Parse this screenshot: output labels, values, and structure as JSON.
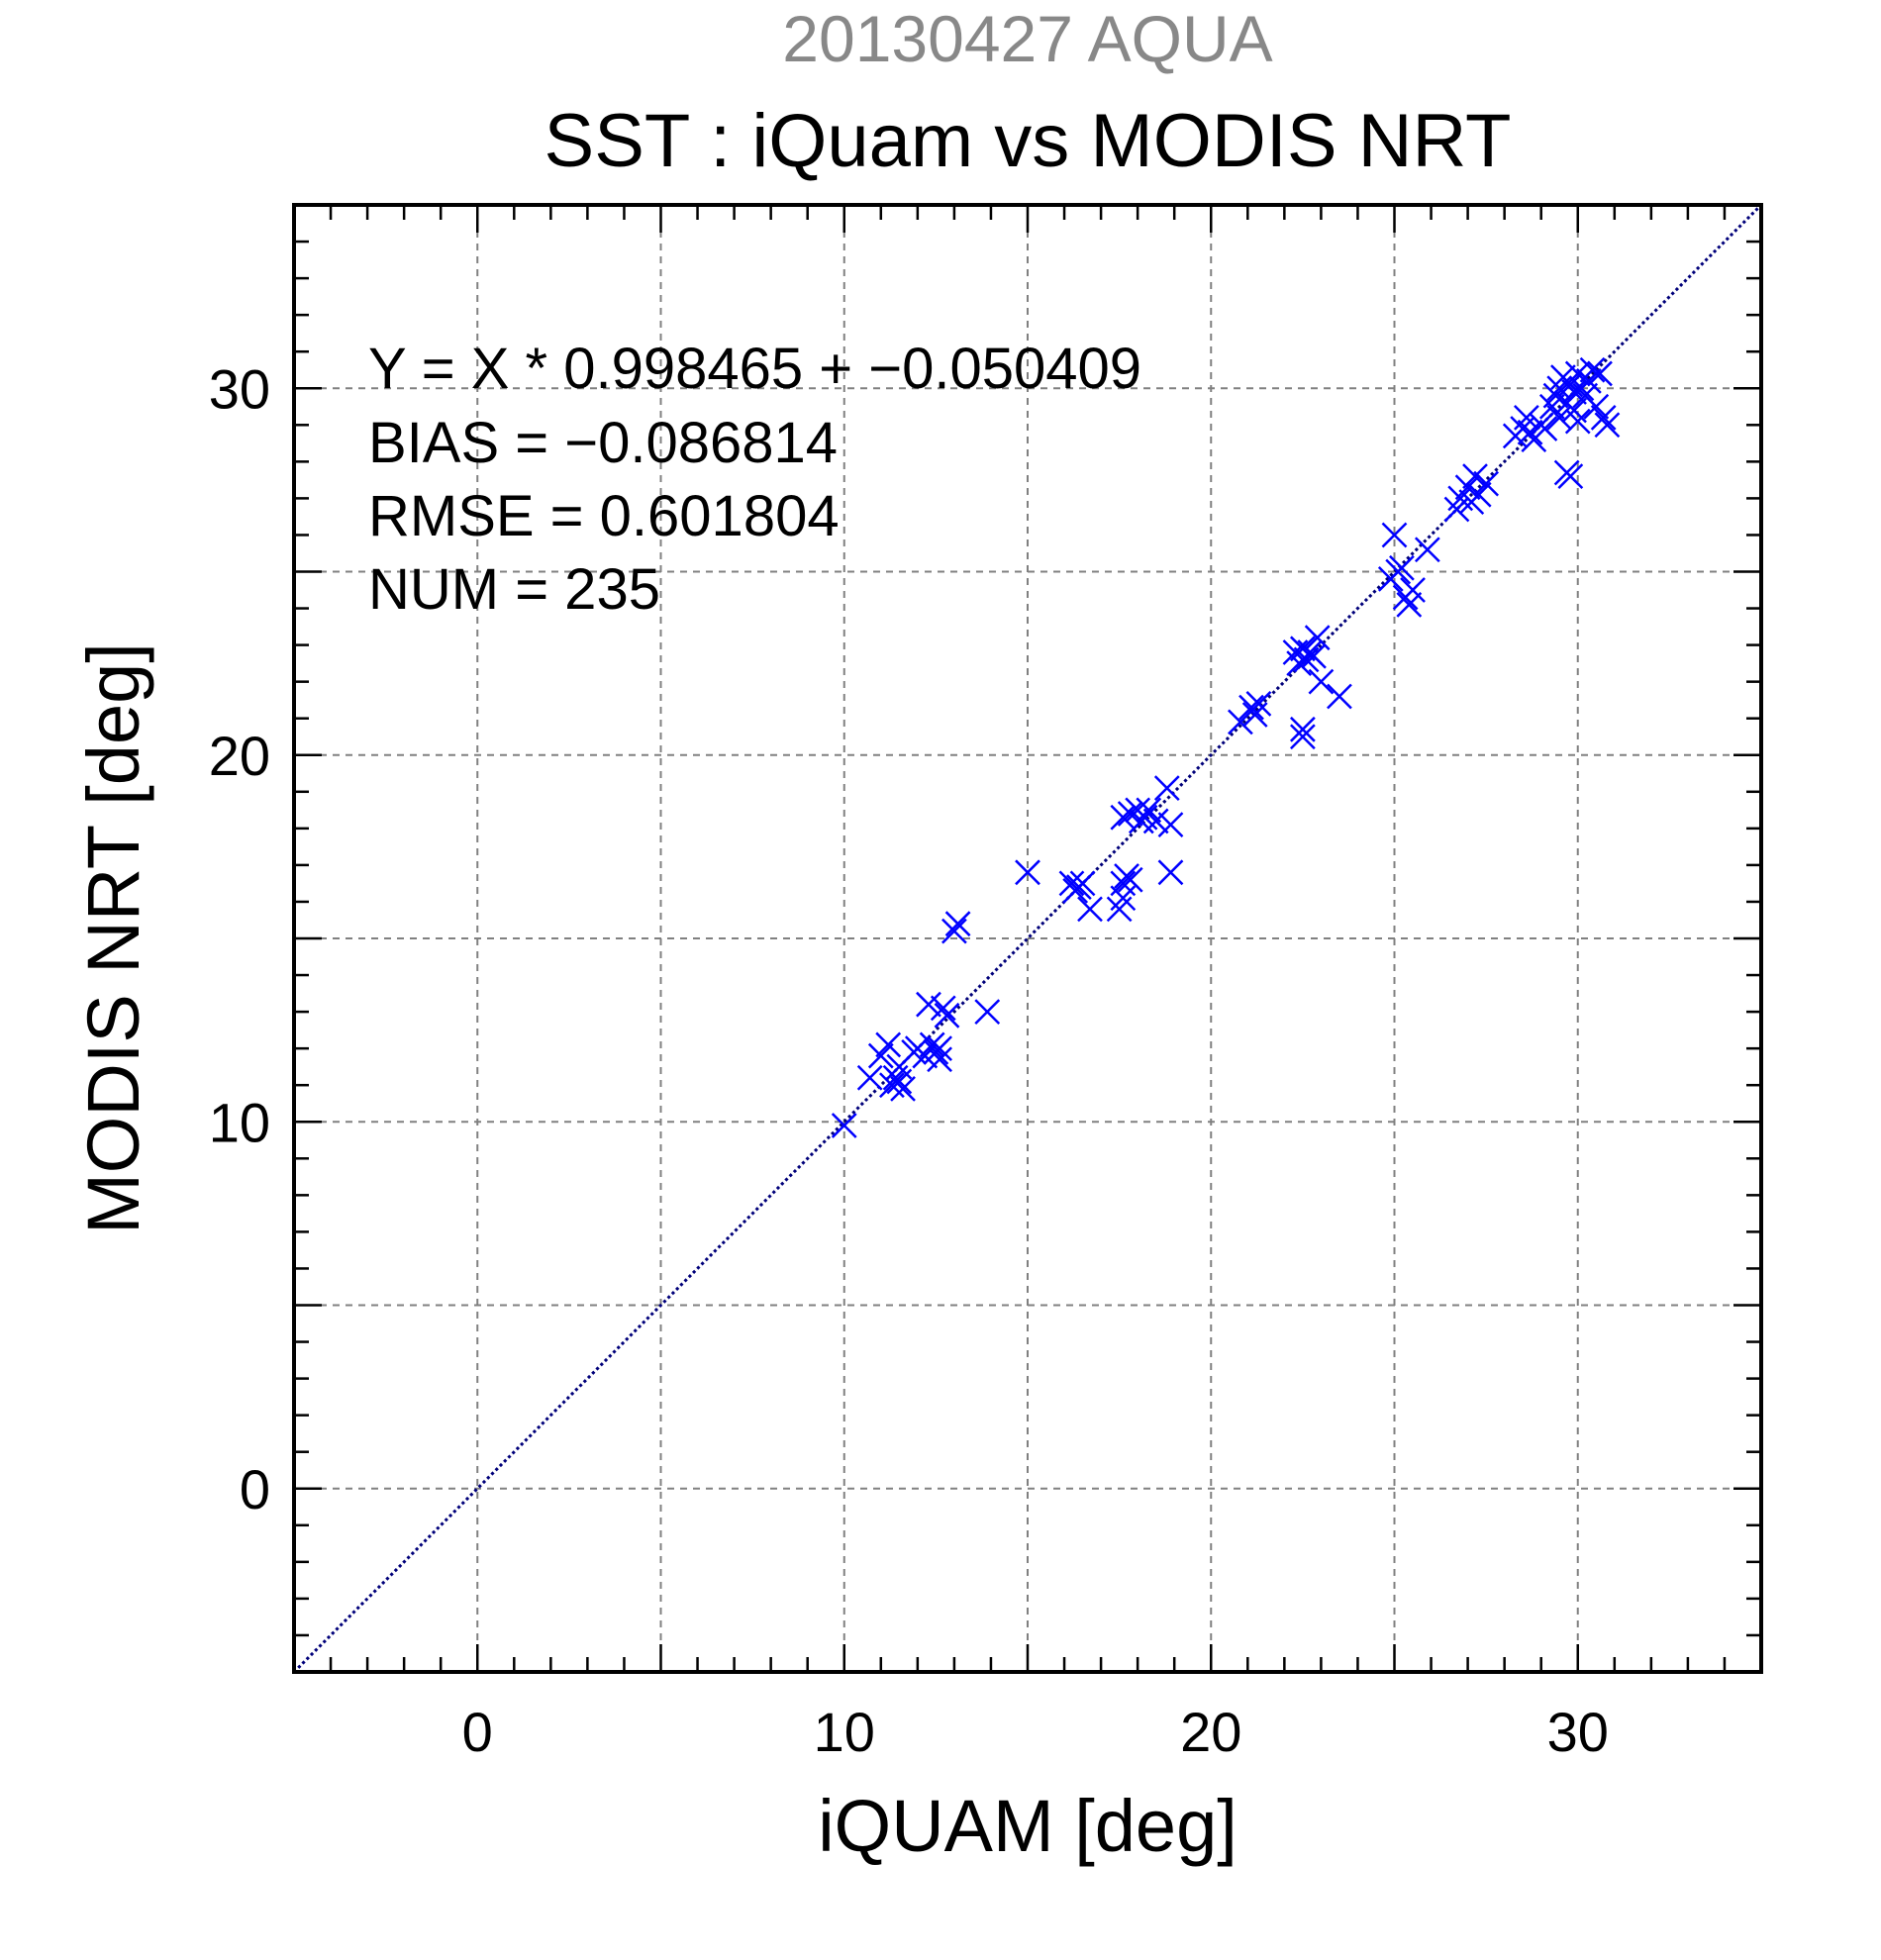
{
  "chart_data": {
    "type": "scatter",
    "title_top": "20130427 AQUA",
    "title": "SST : iQuam vs MODIS NRT",
    "xlabel": "iQUAM [deg]",
    "ylabel": "MODIS NRT [deg]",
    "xlim": [
      -5,
      35
    ],
    "ylim": [
      -5,
      35
    ],
    "xticks": [
      0,
      10,
      20,
      30
    ],
    "yticks": [
      0,
      10,
      20,
      30
    ],
    "xtick_labels": [
      "0",
      "10",
      "20",
      "30"
    ],
    "ytick_labels": [
      "0",
      "10",
      "20",
      "30"
    ],
    "grid": true,
    "grid_step": 5,
    "minor_tick_step": 1,
    "marker": "x",
    "marker_color": "#0000ff",
    "reference_line": {
      "slope": 1,
      "intercept": 0,
      "style": "dotted",
      "color": "#00007a"
    },
    "stats": [
      "Y = X * 0.998465 + −0.050409",
      "BIAS = −0.086814",
      "RMSE = 0.601804",
      "NUM = 235"
    ],
    "series": [
      {
        "points": [
          [
            10.0,
            9.9
          ],
          [
            10.7,
            11.2
          ],
          [
            11.0,
            11.8
          ],
          [
            11.2,
            12.1
          ],
          [
            11.3,
            11.0
          ],
          [
            11.4,
            11.2
          ],
          [
            11.5,
            11.1
          ],
          [
            11.5,
            11.5
          ],
          [
            11.6,
            10.9
          ],
          [
            11.9,
            11.9
          ],
          [
            12.0,
            12.0
          ],
          [
            12.2,
            11.8
          ],
          [
            12.3,
            13.2
          ],
          [
            12.4,
            12.1
          ],
          [
            12.5,
            11.9
          ],
          [
            12.6,
            12.0
          ],
          [
            12.6,
            11.7
          ],
          [
            12.7,
            13.1
          ],
          [
            12.8,
            12.9
          ],
          [
            13.0,
            15.2
          ],
          [
            13.1,
            15.4
          ],
          [
            13.9,
            13.0
          ],
          [
            15.0,
            16.8
          ],
          [
            16.2,
            16.5
          ],
          [
            16.3,
            16.3
          ],
          [
            16.4,
            16.4
          ],
          [
            16.5,
            16.5
          ],
          [
            16.7,
            15.8
          ],
          [
            17.5,
            15.8
          ],
          [
            17.6,
            16.1
          ],
          [
            17.6,
            16.5
          ],
          [
            17.7,
            16.7
          ],
          [
            17.8,
            16.6
          ],
          [
            17.6,
            18.3
          ],
          [
            17.8,
            18.4
          ],
          [
            18.0,
            18.5
          ],
          [
            18.1,
            18.2
          ],
          [
            18.2,
            18.3
          ],
          [
            18.3,
            18.5
          ],
          [
            18.5,
            18.2
          ],
          [
            18.9,
            18.1
          ],
          [
            18.8,
            19.1
          ],
          [
            18.9,
            16.8
          ],
          [
            20.8,
            20.9
          ],
          [
            21.1,
            21.3
          ],
          [
            21.2,
            21.1
          ],
          [
            21.3,
            21.4
          ],
          [
            22.3,
            22.8
          ],
          [
            22.4,
            22.5
          ],
          [
            22.5,
            22.9
          ],
          [
            22.5,
            20.7
          ],
          [
            22.6,
            22.6
          ],
          [
            22.7,
            22.8
          ],
          [
            22.8,
            22.7
          ],
          [
            22.9,
            23.2
          ],
          [
            22.5,
            20.5
          ],
          [
            23.0,
            22.0
          ],
          [
            23.5,
            21.6
          ],
          [
            24.9,
            24.8
          ],
          [
            25.0,
            26.0
          ],
          [
            25.1,
            25.0
          ],
          [
            25.2,
            25.1
          ],
          [
            25.3,
            24.3
          ],
          [
            25.4,
            24.1
          ],
          [
            25.5,
            24.5
          ],
          [
            25.9,
            25.6
          ],
          [
            26.7,
            26.7
          ],
          [
            26.8,
            27.0
          ],
          [
            27.0,
            27.3
          ],
          [
            27.1,
            26.9
          ],
          [
            27.2,
            27.6
          ],
          [
            27.3,
            27.1
          ],
          [
            27.5,
            27.4
          ],
          [
            28.3,
            28.7
          ],
          [
            28.5,
            28.9
          ],
          [
            28.6,
            29.2
          ],
          [
            28.7,
            28.8
          ],
          [
            28.8,
            28.6
          ],
          [
            29.0,
            29.0
          ],
          [
            29.1,
            28.9
          ],
          [
            29.3,
            29.5
          ],
          [
            29.4,
            29.8
          ],
          [
            29.5,
            30.0
          ],
          [
            29.6,
            30.3
          ],
          [
            29.7,
            29.6
          ],
          [
            29.8,
            30.1
          ],
          [
            29.9,
            29.9
          ],
          [
            30.0,
            30.4
          ],
          [
            30.1,
            30.0
          ],
          [
            30.2,
            29.8
          ],
          [
            30.3,
            30.2
          ],
          [
            30.4,
            30.5
          ],
          [
            30.5,
            29.5
          ],
          [
            30.7,
            29.2
          ],
          [
            30.8,
            29.0
          ],
          [
            29.7,
            27.7
          ],
          [
            29.8,
            27.6
          ],
          [
            29.5,
            29.2
          ],
          [
            29.9,
            29.4
          ],
          [
            30.0,
            29.1
          ],
          [
            30.6,
            30.4
          ]
        ]
      }
    ]
  }
}
